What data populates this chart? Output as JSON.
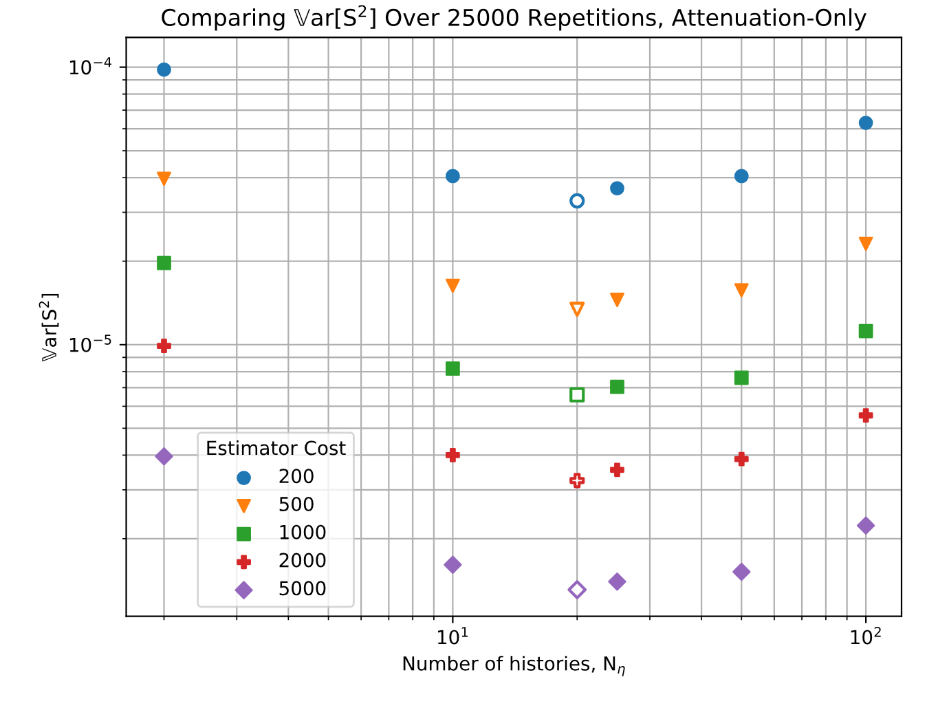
{
  "chart_data": {
    "type": "scatter",
    "title": "Comparing 𝕍ar[S$^{2}$] Over 25000 Repetitions, Attenuation-Only",
    "xlabel": "Number of histories, N$_{η}$",
    "ylabel": "𝕍ar[S$^{2}$]",
    "legend_title": "Estimator Cost",
    "legend": "bottom left",
    "log": "xy",
    "grid": true,
    "xlim": [
      1.62,
      122
    ],
    "ylim": [
      1.05e-06,
      0.000128
    ],
    "xticks": [
      {
        "value": 10,
        "label": "10$^{1}$"
      },
      {
        "value": 100,
        "label": "10$^{2}$"
      }
    ],
    "yticks": [
      {
        "value": 1e-05,
        "label": "10$^{−5}$"
      },
      {
        "value": 0.0001,
        "label": "10$^{−4}$"
      }
    ],
    "series": [
      {
        "name": "200",
        "color": "#1f77b4",
        "marker": "circle",
        "x": [
          2,
          10,
          20,
          25,
          50,
          100
        ],
        "values": [
          9.8e-05,
          4.05e-05,
          3.3e-05,
          3.66e-05,
          4.05e-05,
          6.3e-05
        ],
        "colors": [
          "#1f77b4",
          "#1f77b4",
          "#ffffff",
          "#1f77b4",
          "#1f77b4",
          "#1f77b4"
        ]
      },
      {
        "name": "500",
        "color": "#ff7f0e",
        "marker": "triangle",
        "x": [
          2,
          10,
          20,
          25,
          50,
          100
        ],
        "values": [
          3.96e-05,
          1.63e-05,
          1.34e-05,
          1.45e-05,
          1.57e-05,
          2.31e-05
        ],
        "colors": [
          "#ff7f0e",
          "#ff7f0e",
          "#ffffff",
          "#ff7f0e",
          "#ff7f0e",
          "#ff7f0e"
        ]
      },
      {
        "name": "1000",
        "color": "#2ca02c",
        "marker": "square",
        "x": [
          2,
          10,
          20,
          25,
          50,
          100
        ],
        "values": [
          1.97e-05,
          8.2e-06,
          6.6e-06,
          7.05e-06,
          7.6e-06,
          1.12e-05
        ],
        "colors": [
          "#2ca02c",
          "#2ca02c",
          "#ffffff",
          "#2ca02c",
          "#2ca02c",
          "#2ca02c"
        ]
      },
      {
        "name": "2000",
        "color": "#d62728",
        "marker": "cross",
        "x": [
          2,
          10,
          20,
          25,
          50,
          100
        ],
        "values": [
          9.9e-06,
          4e-06,
          3.24e-06,
          3.54e-06,
          3.87e-06,
          5.56e-06
        ],
        "colors": [
          "#d62728",
          "#d62728",
          "#ffffff",
          "#d62728",
          "#d62728",
          "#d62728"
        ]
      },
      {
        "name": "5000",
        "color": "#9467bd",
        "marker": "diamond",
        "x": [
          2,
          10,
          20,
          25,
          50,
          100
        ],
        "values": [
          3.96e-06,
          1.61e-06,
          1.31e-06,
          1.4e-06,
          1.52e-06,
          2.23e-06
        ],
        "colors": [
          "#9467bd",
          "#9467bd",
          "#ffffff",
          "#9467bd",
          "#9467bd",
          "#9467bd"
        ]
      }
    ]
  }
}
